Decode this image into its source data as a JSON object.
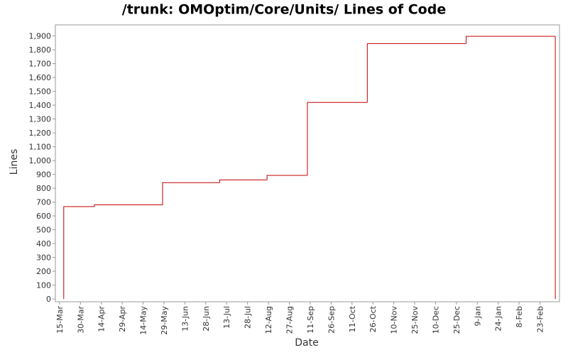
{
  "chart_data": {
    "type": "step",
    "title": "/trunk: OMOptim/Core/Units/ Lines of Code",
    "xlabel": "Date",
    "ylabel": "Lines",
    "color": "#c00000",
    "x": [
      "18-Mar",
      "18-Mar",
      "9-Apr",
      "28-May",
      "8-Jul",
      "11-Aug",
      "9-Sep",
      "22-Oct",
      "1-Jan",
      "6-Mar"
    ],
    "values": [
      0,
      667,
      680,
      840,
      860,
      893,
      1420,
      1845,
      1897,
      0
    ],
    "xlim": [
      "12-Mar",
      "9-Mar"
    ],
    "xticks": [
      "15-Mar",
      "30-Mar",
      "14-Apr",
      "29-Apr",
      "14-May",
      "29-May",
      "13-Jun",
      "28-Jun",
      "13-Jul",
      "28-Jul",
      "12-Aug",
      "27-Aug",
      "11-Sep",
      "26-Sep",
      "11-Oct",
      "26-Oct",
      "10-Nov",
      "25-Nov",
      "10-Dec",
      "25-Dec",
      "9-Jan",
      "24-Jan",
      "8-Feb",
      "23-Feb"
    ],
    "ylim": [
      -20,
      1980
    ],
    "yticks": [
      0,
      100,
      200,
      300,
      400,
      500,
      600,
      700,
      800,
      900,
      {
        "value": 1000,
        "label": "1,000"
      },
      {
        "value": 1100,
        "label": "1,100"
      },
      {
        "value": 1200,
        "label": "1,200"
      },
      {
        "value": 1300,
        "label": "1,300"
      },
      {
        "value": 1400,
        "label": "1,400"
      },
      {
        "value": 1500,
        "label": "1,500"
      },
      {
        "value": 1600,
        "label": "1,600"
      },
      {
        "value": 1700,
        "label": "1,700"
      },
      {
        "value": 1800,
        "label": "1,800"
      },
      {
        "value": 1900,
        "label": "1,900"
      }
    ],
    "grid": false
  }
}
